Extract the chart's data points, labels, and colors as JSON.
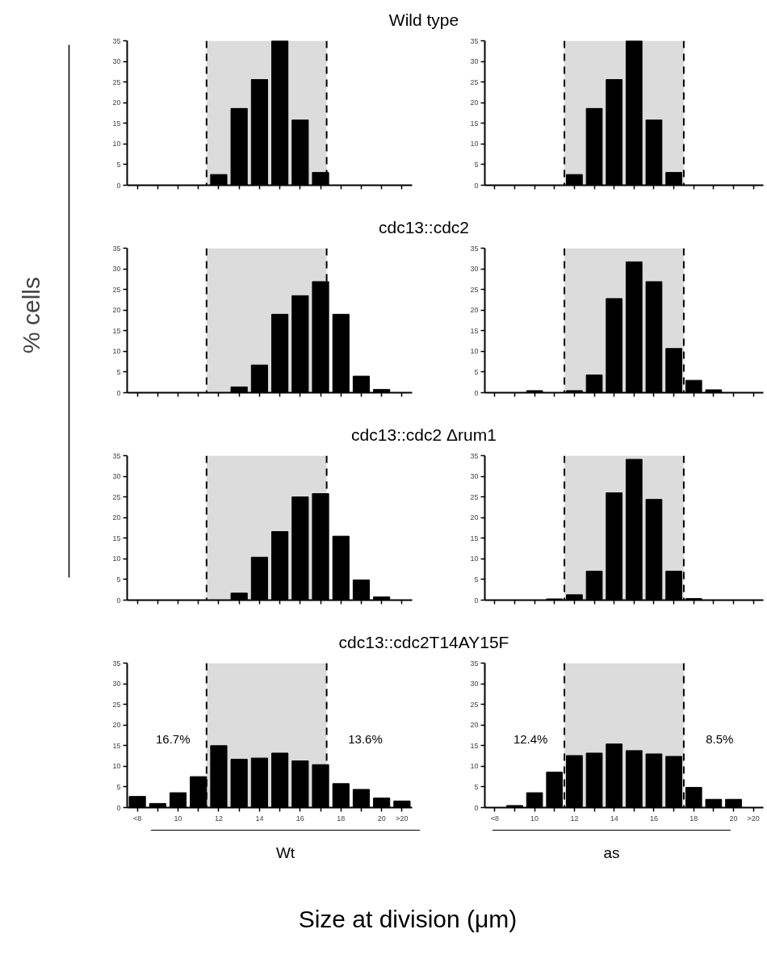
{
  "chart_data": [
    {
      "type": "bar",
      "title": "Wild type",
      "ylabel": "% cells",
      "x": [
        12,
        13,
        14,
        15,
        16,
        17
      ],
      "values": [
        2.6,
        18.6,
        25.6,
        35,
        15.8,
        3.1
      ],
      "color": "#000000",
      "xlim": [
        7.5,
        21.5
      ],
      "ylim": [
        0,
        35
      ],
      "yticks": [
        0,
        5,
        10,
        15,
        20,
        25,
        30,
        35
      ],
      "xticks": [
        8,
        9,
        10,
        11,
        12,
        13,
        14,
        15,
        16,
        17,
        18,
        19,
        20,
        21
      ],
      "tick_labels": "y",
      "grid": false,
      "bands": [
        {
          "axis": "x",
          "from": 11.4,
          "to": 17.3,
          "color": "#dcdcdc"
        }
      ],
      "ref_lines": [
        {
          "axis": "x",
          "value": 11.4,
          "line_style": "dashed",
          "color": "#000000"
        },
        {
          "axis": "x",
          "value": 17.3,
          "line_style": "dashed",
          "color": "#000000"
        }
      ]
    },
    {
      "type": "bar",
      "x": [
        12,
        13,
        14,
        15,
        16,
        17
      ],
      "values": [
        2.6,
        18.6,
        25.6,
        35,
        15.8,
        3.1
      ],
      "color": "#000000",
      "xlim": [
        7.5,
        21.5
      ],
      "ylim": [
        0,
        35
      ],
      "yticks": [
        0,
        5,
        10,
        15,
        20,
        25,
        30,
        35
      ],
      "xticks": [
        8,
        9,
        10,
        11,
        12,
        13,
        14,
        15,
        16,
        17,
        18,
        19,
        20,
        21
      ],
      "tick_labels": "y",
      "grid": false,
      "bands": [
        {
          "axis": "x",
          "from": 11.5,
          "to": 17.5,
          "color": "#dcdcdc"
        }
      ],
      "ref_lines": [
        {
          "axis": "x",
          "value": 11.5,
          "line_style": "dashed",
          "color": "#000000"
        },
        {
          "axis": "x",
          "value": 17.5,
          "line_style": "dashed",
          "color": "#000000"
        }
      ]
    },
    {
      "type": "bar",
      "title": "cdc13::cdc2",
      "x": [
        13,
        14,
        15,
        16,
        17,
        18,
        19,
        20
      ],
      "values": [
        1.4,
        6.7,
        19,
        23.5,
        26.9,
        19,
        4,
        0.8
      ],
      "color": "#000000",
      "xlim": [
        7.5,
        21.5
      ],
      "ylim": [
        0,
        35
      ],
      "yticks": [
        0,
        5,
        10,
        15,
        20,
        25,
        30,
        35
      ],
      "xticks": [
        8,
        9,
        10,
        11,
        12,
        13,
        14,
        15,
        16,
        17,
        18,
        19,
        20,
        21
      ],
      "tick_labels": "y",
      "grid": false,
      "bands": [
        {
          "axis": "x",
          "from": 11.4,
          "to": 17.3,
          "color": "#dcdcdc"
        }
      ],
      "ref_lines": [
        {
          "axis": "x",
          "value": 11.4,
          "line_style": "dashed",
          "color": "#000000"
        },
        {
          "axis": "x",
          "value": 17.3,
          "line_style": "dashed",
          "color": "#000000"
        }
      ]
    },
    {
      "type": "bar",
      "x": [
        10,
        12,
        13,
        14,
        15,
        16,
        17,
        18,
        19
      ],
      "values": [
        0.5,
        0.5,
        4.3,
        22.8,
        31.7,
        26.9,
        10.7,
        3,
        0.7
      ],
      "color": "#000000",
      "xlim": [
        7.5,
        21.5
      ],
      "ylim": [
        0,
        35
      ],
      "yticks": [
        0,
        5,
        10,
        15,
        20,
        25,
        30,
        35
      ],
      "xticks": [
        8,
        9,
        10,
        11,
        12,
        13,
        14,
        15,
        16,
        17,
        18,
        19,
        20,
        21
      ],
      "tick_labels": "y",
      "grid": false,
      "bands": [
        {
          "axis": "x",
          "from": 11.5,
          "to": 17.5,
          "color": "#dcdcdc"
        }
      ],
      "ref_lines": [
        {
          "axis": "x",
          "value": 11.5,
          "line_style": "dashed",
          "color": "#000000"
        },
        {
          "axis": "x",
          "value": 17.5,
          "line_style": "dashed",
          "color": "#000000"
        }
      ]
    },
    {
      "type": "bar",
      "title": "cdc13::cdc2 Δrum1",
      "x": [
        13,
        14,
        15,
        16,
        17,
        18,
        19,
        20
      ],
      "values": [
        1.7,
        10.4,
        16.6,
        25,
        25.8,
        15.5,
        4.9,
        0.8
      ],
      "color": "#000000",
      "xlim": [
        7.5,
        21.5
      ],
      "ylim": [
        0,
        35
      ],
      "yticks": [
        0,
        5,
        10,
        15,
        20,
        25,
        30,
        35
      ],
      "xticks": [
        8,
        9,
        10,
        11,
        12,
        13,
        14,
        15,
        16,
        17,
        18,
        19,
        20,
        21
      ],
      "tick_labels": "y",
      "grid": false,
      "bands": [
        {
          "axis": "x",
          "from": 11.4,
          "to": 17.3,
          "color": "#dcdcdc"
        }
      ],
      "ref_lines": [
        {
          "axis": "x",
          "value": 11.4,
          "line_style": "dashed",
          "color": "#000000"
        },
        {
          "axis": "x",
          "value": 17.3,
          "line_style": "dashed",
          "color": "#000000"
        }
      ]
    },
    {
      "type": "bar",
      "x": [
        11,
        12,
        13,
        14,
        15,
        16,
        17,
        18
      ],
      "values": [
        0.3,
        1.3,
        7,
        26,
        34.1,
        24.4,
        7,
        0.4
      ],
      "color": "#000000",
      "xlim": [
        7.5,
        21.5
      ],
      "ylim": [
        0,
        35
      ],
      "yticks": [
        0,
        5,
        10,
        15,
        20,
        25,
        30,
        35
      ],
      "xticks": [
        8,
        9,
        10,
        11,
        12,
        13,
        14,
        15,
        16,
        17,
        18,
        19,
        20,
        21
      ],
      "tick_labels": "y",
      "grid": false,
      "bands": [
        {
          "axis": "x",
          "from": 11.5,
          "to": 17.5,
          "color": "#dcdcdc"
        }
      ],
      "ref_lines": [
        {
          "axis": "x",
          "value": 11.5,
          "line_style": "dashed",
          "color": "#000000"
        },
        {
          "axis": "x",
          "value": 17.5,
          "line_style": "dashed",
          "color": "#000000"
        }
      ]
    },
    {
      "type": "bar",
      "title": "cdc13::cdc2T14AY15F",
      "xlabel": "Wt",
      "x": [
        8,
        9,
        10,
        11,
        12,
        13,
        14,
        15,
        16,
        17,
        18,
        19,
        20,
        21
      ],
      "values": [
        2.7,
        1,
        3.6,
        7.5,
        15,
        11.7,
        12,
        13.2,
        11.3,
        10.4,
        5.8,
        4.4,
        2.3,
        1.6
      ],
      "color": "#000000",
      "xlim": [
        7.5,
        21.5
      ],
      "ylim": [
        0,
        35
      ],
      "yticks": [
        0,
        5,
        10,
        15,
        20,
        25,
        30,
        35
      ],
      "xticks": [
        {
          "value": 8,
          "label": "<8"
        },
        {
          "value": 9,
          "label": null
        },
        10,
        {
          "value": 11,
          "label": null
        },
        12,
        {
          "value": 13,
          "label": null
        },
        14,
        {
          "value": 15,
          "label": null
        },
        16,
        {
          "value": 17,
          "label": null
        },
        18,
        {
          "value": 19,
          "label": null
        },
        20,
        {
          "value": 21,
          "label": ">20"
        }
      ],
      "grid": false,
      "bands": [
        {
          "axis": "x",
          "from": 11.4,
          "to": 17.3,
          "color": "#dcdcdc"
        }
      ],
      "ref_lines": [
        {
          "axis": "x",
          "value": 11.4,
          "line_style": "dashed",
          "color": "#000000"
        },
        {
          "axis": "x",
          "value": 17.3,
          "line_style": "dashed",
          "color": "#000000"
        }
      ],
      "annotations": [
        "16.7%",
        "13.6%"
      ]
    },
    {
      "type": "bar",
      "xlabel": "as",
      "x": [
        9,
        10,
        11,
        12,
        13,
        14,
        15,
        16,
        17,
        18,
        19,
        20
      ],
      "values": [
        0.5,
        3.6,
        8.6,
        12.6,
        13.2,
        15.4,
        13.8,
        13,
        12.4,
        4.9,
        2,
        2
      ],
      "color": "#000000",
      "xlim": [
        7.5,
        21.5
      ],
      "ylim": [
        0,
        35
      ],
      "yticks": [
        0,
        5,
        10,
        15,
        20,
        25,
        30,
        35
      ],
      "xticks": [
        {
          "value": 8,
          "label": "<8"
        },
        {
          "value": 9,
          "label": null
        },
        10,
        {
          "value": 11,
          "label": null
        },
        12,
        {
          "value": 13,
          "label": null
        },
        14,
        {
          "value": 15,
          "label": null
        },
        16,
        {
          "value": 17,
          "label": null
        },
        18,
        {
          "value": 19,
          "label": null
        },
        20,
        {
          "value": 21,
          "label": ">20"
        }
      ],
      "grid": false,
      "bands": [
        {
          "axis": "x",
          "from": 11.5,
          "to": 17.5,
          "color": "#dcdcdc"
        }
      ],
      "ref_lines": [
        {
          "axis": "x",
          "value": 11.5,
          "line_style": "dashed",
          "color": "#000000"
        },
        {
          "axis": "x",
          "value": 17.5,
          "line_style": "dashed",
          "color": "#000000"
        }
      ],
      "annotations": [
        "12.4%",
        "8.5%",
        "Size at division (μm)"
      ]
    }
  ]
}
